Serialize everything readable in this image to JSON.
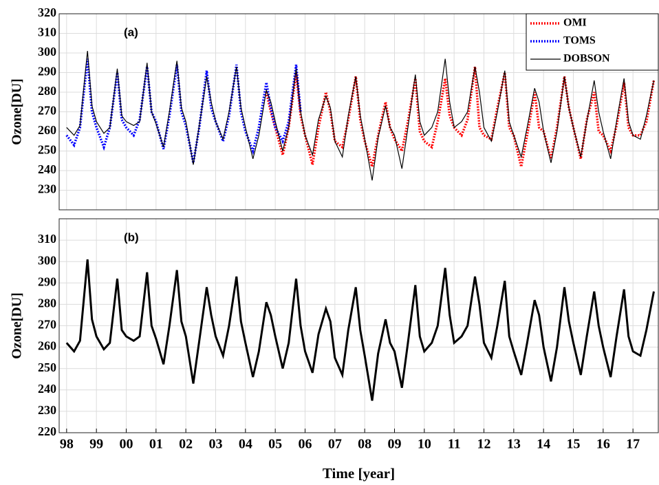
{
  "chart_data": [
    {
      "type": "line",
      "annotation": "(a)",
      "ylabel": "Ozone[DU]",
      "xlim": [
        1997.75,
        2017.85
      ],
      "ylim": [
        220,
        320
      ],
      "yticks": [
        230,
        240,
        250,
        260,
        270,
        280,
        290,
        300,
        310,
        320
      ],
      "grid": true,
      "legend": "top-right",
      "x": [
        1998,
        1998.25,
        1998.45,
        1998.7,
        1998.85,
        1999,
        1999.25,
        1999.45,
        1999.7,
        1999.85,
        2000,
        2000.25,
        2000.45,
        2000.7,
        2000.85,
        2001,
        2001.25,
        2001.45,
        2001.7,
        2001.85,
        2002,
        2002.25,
        2002.45,
        2002.7,
        2002.85,
        2003,
        2003.25,
        2003.45,
        2003.7,
        2003.85,
        2004,
        2004.25,
        2004.45,
        2004.7,
        2004.85,
        2005,
        2005.25,
        2005.45,
        2005.7,
        2005.85,
        2006,
        2006.25,
        2006.45,
        2006.7,
        2006.85,
        2007,
        2007.25,
        2007.45,
        2007.7,
        2007.85,
        2008,
        2008.25,
        2008.45,
        2008.7,
        2008.85,
        2009,
        2009.25,
        2009.45,
        2009.7,
        2009.85,
        2010,
        2010.25,
        2010.45,
        2010.7,
        2010.85,
        2011,
        2011.25,
        2011.45,
        2011.7,
        2011.85,
        2012,
        2012.25,
        2012.45,
        2012.7,
        2012.85,
        2013,
        2013.25,
        2013.45,
        2013.7,
        2013.85,
        2014,
        2014.25,
        2014.45,
        2014.7,
        2014.85,
        2015,
        2015.25,
        2015.45,
        2015.7,
        2015.85,
        2016,
        2016.25,
        2016.45,
        2016.7,
        2016.85,
        2017,
        2017.25,
        2017.45,
        2017.7
      ],
      "series": [
        {
          "name": "OMI",
          "color": "#ff0000",
          "style": "dotted",
          "width": 3.5,
          "values": [
            null,
            null,
            null,
            null,
            null,
            null,
            null,
            null,
            null,
            null,
            null,
            null,
            null,
            null,
            null,
            null,
            null,
            null,
            null,
            null,
            null,
            null,
            null,
            null,
            null,
            null,
            null,
            null,
            null,
            null,
            null,
            null,
            null,
            280,
            270,
            262,
            248,
            262,
            290,
            268,
            258,
            243,
            262,
            280,
            270,
            255,
            252,
            266,
            288,
            266,
            255,
            242,
            258,
            275,
            262,
            256,
            250,
            265,
            287,
            260,
            255,
            252,
            265,
            287,
            268,
            262,
            258,
            266,
            293,
            262,
            258,
            256,
            272,
            290,
            262,
            258,
            242,
            258,
            280,
            262,
            260,
            246,
            262,
            288,
            272,
            262,
            246,
            266,
            280,
            260,
            258,
            250,
            263,
            285,
            262,
            258,
            258,
            265,
            286
          ]
        },
        {
          "name": "TOMS",
          "color": "#0000ff",
          "style": "dotted",
          "width": 3.5,
          "values": [
            258,
            253,
            262,
            297,
            270,
            262,
            252,
            262,
            290,
            266,
            262,
            258,
            266,
            293,
            270,
            265,
            251,
            268,
            294,
            270,
            263,
            244,
            262,
            291,
            272,
            265,
            255,
            268,
            294,
            270,
            260,
            250,
            262,
            285,
            272,
            262,
            255,
            265,
            294,
            270,
            null,
            null,
            null,
            null,
            null,
            null,
            null,
            null,
            null,
            null,
            null,
            null,
            null,
            null,
            null,
            null,
            null,
            null,
            null,
            null,
            null,
            null,
            null,
            null,
            null,
            null,
            null,
            null,
            null,
            null,
            null,
            null,
            null,
            null,
            null,
            null,
            null,
            null,
            null,
            null,
            null,
            null,
            null,
            null,
            null,
            null,
            null,
            null,
            null,
            null,
            null,
            null,
            null,
            null,
            null,
            null,
            null,
            null,
            null
          ]
        },
        {
          "name": "DOBSON",
          "color": "#000000",
          "style": "solid",
          "width": 1.2,
          "values": [
            262,
            258,
            263,
            301,
            273,
            265,
            259,
            262,
            292,
            268,
            265,
            263,
            265,
            295,
            270,
            264,
            252,
            270,
            296,
            272,
            265,
            243,
            263,
            288,
            275,
            265,
            256,
            270,
            293,
            272,
            262,
            246,
            258,
            281,
            275,
            265,
            250,
            262,
            292,
            270,
            258,
            248,
            266,
            278,
            272,
            255,
            247,
            268,
            288,
            268,
            256,
            235,
            257,
            273,
            262,
            258,
            241,
            262,
            289,
            265,
            258,
            262,
            270,
            297,
            275,
            262,
            265,
            270,
            293,
            280,
            262,
            255,
            270,
            291,
            265,
            258,
            247,
            262,
            282,
            275,
            260,
            244,
            260,
            288,
            272,
            262,
            247,
            265,
            286,
            270,
            260,
            246,
            265,
            287,
            265,
            258,
            256,
            268,
            286
          ]
        }
      ]
    },
    {
      "type": "line",
      "annotation": "(b)",
      "ylabel": "Ozone[DU]",
      "xlabel": "Time [year]",
      "xlim": [
        1997.75,
        2017.85
      ],
      "ylim": [
        220,
        320
      ],
      "yticks": [
        220,
        230,
        240,
        250,
        260,
        270,
        280,
        290,
        300,
        310
      ],
      "grid": true,
      "xticks": [
        {
          "value": 1998,
          "label": "98"
        },
        {
          "value": 1999,
          "label": "99"
        },
        {
          "value": 2000,
          "label": "00"
        },
        {
          "value": 2001,
          "label": "01"
        },
        {
          "value": 2002,
          "label": "02"
        },
        {
          "value": 2003,
          "label": "03"
        },
        {
          "value": 2004,
          "label": "04"
        },
        {
          "value": 2005,
          "label": "05"
        },
        {
          "value": 2006,
          "label": "06"
        },
        {
          "value": 2007,
          "label": "07"
        },
        {
          "value": 2008,
          "label": "08"
        },
        {
          "value": 2009,
          "label": "09"
        },
        {
          "value": 2010,
          "label": "10"
        },
        {
          "value": 2011,
          "label": "11"
        },
        {
          "value": 2012,
          "label": "12"
        },
        {
          "value": 2013,
          "label": "13"
        },
        {
          "value": 2014,
          "label": "14"
        },
        {
          "value": 2015,
          "label": "15"
        },
        {
          "value": 2016,
          "label": "16"
        },
        {
          "value": 2017,
          "label": "17"
        }
      ],
      "x": [
        1998,
        1998.25,
        1998.45,
        1998.7,
        1998.85,
        1999,
        1999.25,
        1999.45,
        1999.7,
        1999.85,
        2000,
        2000.25,
        2000.45,
        2000.7,
        2000.85,
        2001,
        2001.25,
        2001.45,
        2001.7,
        2001.85,
        2002,
        2002.25,
        2002.45,
        2002.7,
        2002.85,
        2003,
        2003.25,
        2003.45,
        2003.7,
        2003.85,
        2004,
        2004.25,
        2004.45,
        2004.7,
        2004.85,
        2005,
        2005.25,
        2005.45,
        2005.7,
        2005.85,
        2006,
        2006.25,
        2006.45,
        2006.7,
        2006.85,
        2007,
        2007.25,
        2007.45,
        2007.7,
        2007.85,
        2008,
        2008.25,
        2008.45,
        2008.7,
        2008.85,
        2009,
        2009.25,
        2009.45,
        2009.7,
        2009.85,
        2010,
        2010.25,
        2010.45,
        2010.7,
        2010.85,
        2011,
        2011.25,
        2011.45,
        2011.7,
        2011.85,
        2012,
        2012.25,
        2012.45,
        2012.7,
        2012.85,
        2013,
        2013.25,
        2013.45,
        2013.7,
        2013.85,
        2014,
        2014.25,
        2014.45,
        2014.7,
        2014.85,
        2015,
        2015.25,
        2015.45,
        2015.7,
        2015.85,
        2016,
        2016.25,
        2016.45,
        2016.7,
        2016.85,
        2017,
        2017.25,
        2017.45,
        2017.7
      ],
      "series": [
        {
          "color": "#000000",
          "style": "solid",
          "width": 3,
          "values": [
            262,
            258,
            263,
            301,
            273,
            265,
            259,
            262,
            292,
            268,
            265,
            263,
            265,
            295,
            270,
            264,
            252,
            270,
            296,
            272,
            265,
            243,
            263,
            288,
            275,
            265,
            256,
            270,
            293,
            272,
            262,
            246,
            258,
            281,
            275,
            265,
            250,
            262,
            292,
            270,
            258,
            248,
            266,
            278,
            272,
            255,
            247,
            268,
            288,
            268,
            256,
            235,
            257,
            273,
            262,
            258,
            241,
            262,
            289,
            265,
            258,
            262,
            270,
            297,
            275,
            262,
            265,
            270,
            293,
            280,
            262,
            255,
            270,
            291,
            265,
            258,
            247,
            262,
            282,
            275,
            260,
            244,
            260,
            288,
            272,
            262,
            247,
            265,
            286,
            270,
            260,
            246,
            265,
            287,
            265,
            258,
            256,
            268,
            286
          ]
        }
      ]
    }
  ]
}
